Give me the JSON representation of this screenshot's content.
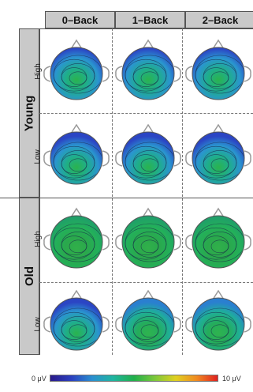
{
  "columns": [
    "0–Back",
    "1–Back",
    "2–Back"
  ],
  "groups": [
    {
      "label": "Young",
      "rows": [
        "High",
        "Low"
      ]
    },
    {
      "label": "Old",
      "rows": [
        "High",
        "Low"
      ]
    }
  ],
  "colorbar": {
    "min_label": "0 μV",
    "max_label": "10 μV"
  },
  "maps": [
    {
      "group": "Young",
      "row": "High",
      "col": "0–Back",
      "palette": "blue-green"
    },
    {
      "group": "Young",
      "row": "High",
      "col": "1–Back",
      "palette": "blue-green"
    },
    {
      "group": "Young",
      "row": "High",
      "col": "2–Back",
      "palette": "blue-green"
    },
    {
      "group": "Young",
      "row": "Low",
      "col": "0–Back",
      "palette": "blue-green"
    },
    {
      "group": "Young",
      "row": "Low",
      "col": "1–Back",
      "palette": "blue-green"
    },
    {
      "group": "Young",
      "row": "Low",
      "col": "2–Back",
      "palette": "blue-green"
    },
    {
      "group": "Old",
      "row": "High",
      "col": "0–Back",
      "palette": "green"
    },
    {
      "group": "Old",
      "row": "High",
      "col": "1–Back",
      "palette": "green"
    },
    {
      "group": "Old",
      "row": "High",
      "col": "2–Back",
      "palette": "green"
    },
    {
      "group": "Old",
      "row": "Low",
      "col": "0–Back",
      "palette": "blue-green"
    },
    {
      "group": "Old",
      "row": "Low",
      "col": "1–Back",
      "palette": "green-blue"
    },
    {
      "group": "Old",
      "row": "Low",
      "col": "2–Back",
      "palette": "green-blue"
    }
  ]
}
